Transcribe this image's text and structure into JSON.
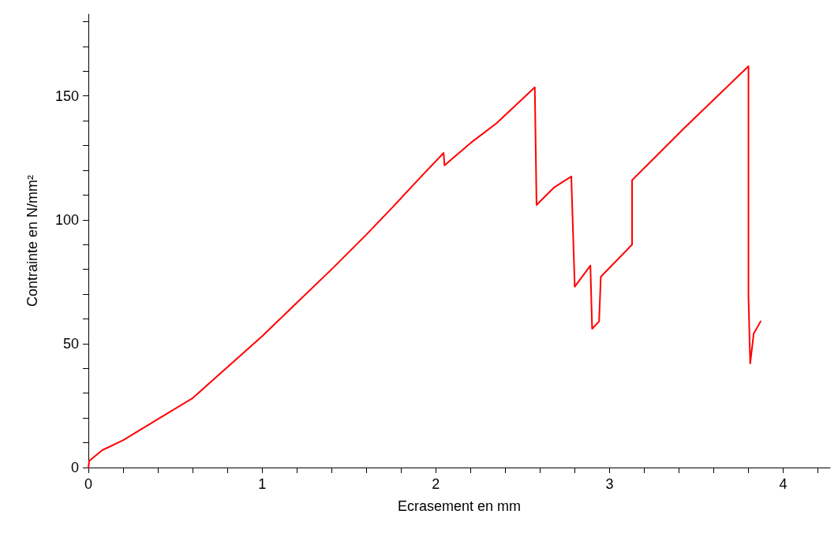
{
  "chart_data": {
    "type": "line",
    "xlabel": "Ecrasement en mm",
    "ylabel": "Contrainte en N/mm²",
    "xlim": [
      0,
      4.27
    ],
    "ylim": [
      0,
      183
    ],
    "xticks": [
      0,
      {
        "value": 0.2,
        "label": null
      },
      {
        "value": 0.4,
        "label": null
      },
      {
        "value": 0.6,
        "label": null
      },
      {
        "value": 0.8,
        "label": null
      },
      1,
      {
        "value": 1.2,
        "label": null
      },
      {
        "value": 1.4,
        "label": null
      },
      {
        "value": 1.6,
        "label": null
      },
      {
        "value": 1.8,
        "label": null
      },
      2,
      {
        "value": 2.2,
        "label": null
      },
      {
        "value": 2.4,
        "label": null
      },
      {
        "value": 2.6,
        "label": null
      },
      {
        "value": 2.8,
        "label": null
      },
      3,
      {
        "value": 3.2,
        "label": null
      },
      {
        "value": 3.4,
        "label": null
      },
      {
        "value": 3.6,
        "label": null
      },
      {
        "value": 3.8,
        "label": null
      },
      4,
      {
        "value": 4.2,
        "label": null
      }
    ],
    "yticks": [
      0,
      {
        "value": 10,
        "label": null
      },
      {
        "value": 20,
        "label": null
      },
      {
        "value": 30,
        "label": null
      },
      {
        "value": 40,
        "label": null
      },
      50,
      {
        "value": 60,
        "label": null
      },
      {
        "value": 70,
        "label": null
      },
      {
        "value": 80,
        "label": null
      },
      {
        "value": 90,
        "label": null
      },
      100,
      {
        "value": 110,
        "label": null
      },
      {
        "value": 120,
        "label": null
      },
      {
        "value": 130,
        "label": null
      },
      {
        "value": 140,
        "label": null
      },
      150,
      {
        "value": 160,
        "label": null
      },
      {
        "value": 170,
        "label": null
      },
      {
        "value": 180,
        "label": null
      }
    ],
    "grid": false,
    "marker": "none",
    "line_style": "solid",
    "series": [
      {
        "color": "#ff0000",
        "x": [
          0,
          0.005,
          0.08,
          0.2,
          0.4,
          0.6,
          0.8,
          1.0,
          1.2,
          1.4,
          1.6,
          1.75,
          1.93,
          2.045,
          2.05,
          2.2,
          2.35,
          2.57,
          2.58,
          2.68,
          2.78,
          2.8,
          2.89,
          2.9,
          2.94,
          2.95,
          3.13,
          3.13,
          3.43,
          3.8,
          3.8,
          3.81,
          3.83,
          3.87
        ],
        "values": [
          0,
          2.7,
          7,
          11,
          19.5,
          28,
          40.5,
          53,
          66.5,
          80,
          94,
          105,
          118.5,
          127,
          122,
          131,
          139,
          153.5,
          106,
          113,
          117.5,
          73,
          81.5,
          56,
          59,
          77,
          90,
          116,
          137,
          162,
          69,
          42,
          54,
          59
        ]
      }
    ]
  }
}
